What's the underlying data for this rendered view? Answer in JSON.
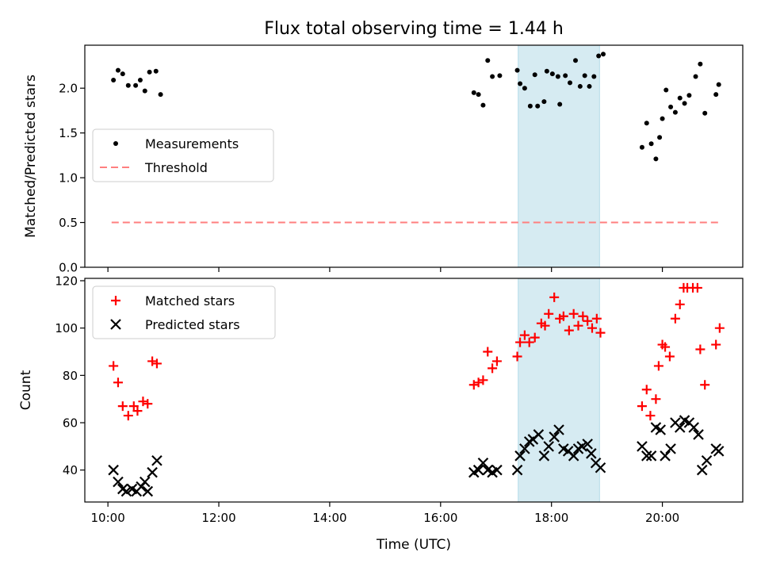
{
  "chart_data": [
    {
      "type": "scatter",
      "title": "Flux total observing time = 1.44 h",
      "ylabel": "Matched/Predicted stars",
      "xlabel": "",
      "xlim": [
        "09:35",
        "21:27"
      ],
      "ylim": [
        0,
        2.48
      ],
      "yticks": [
        0.0,
        0.5,
        1.0,
        1.5,
        2.0
      ],
      "ytick_labels": [
        "0.0",
        "0.5",
        "1.0",
        "1.5",
        "2.0"
      ],
      "xticks": [
        "10:00",
        "12:00",
        "14:00",
        "16:00",
        "18:00",
        "20:00"
      ],
      "grid": false,
      "legend": {
        "placement": "center-left",
        "entries": [
          "Measurements",
          "Threshold"
        ]
      },
      "highlight_span": {
        "start": "17:24",
        "end": "18:52",
        "color": "#add8e6"
      },
      "threshold": {
        "name": "Threshold",
        "value": 0.5,
        "x_start": "10:04",
        "x_end": "21:03",
        "color": "#ff7f7f",
        "style": "dashed"
      },
      "series": [
        {
          "name": "Measurements",
          "color": "#000000",
          "marker": "dot",
          "points": [
            [
              "10:06",
              2.09
            ],
            [
              "10:11",
              2.2
            ],
            [
              "10:16",
              2.16
            ],
            [
              "10:22",
              2.03
            ],
            [
              "10:30",
              2.03
            ],
            [
              "10:35",
              2.09
            ],
            [
              "10:40",
              1.97
            ],
            [
              "10:45",
              2.18
            ],
            [
              "10:52",
              2.19
            ],
            [
              "10:57",
              1.93
            ],
            [
              "16:36",
              1.95
            ],
            [
              "16:41",
              1.93
            ],
            [
              "16:46",
              1.81
            ],
            [
              "16:51",
              2.31
            ],
            [
              "16:56",
              2.13
            ],
            [
              "17:04",
              2.14
            ],
            [
              "17:23",
              2.2
            ],
            [
              "17:26",
              2.05
            ],
            [
              "17:31",
              2.0
            ],
            [
              "17:37",
              1.8
            ],
            [
              "17:42",
              2.15
            ],
            [
              "17:45",
              1.8
            ],
            [
              "17:52",
              1.85
            ],
            [
              "17:55",
              2.19
            ],
            [
              "18:01",
              2.16
            ],
            [
              "18:07",
              2.13
            ],
            [
              "18:09",
              1.82
            ],
            [
              "18:15",
              2.14
            ],
            [
              "18:20",
              2.06
            ],
            [
              "18:26",
              2.31
            ],
            [
              "18:31",
              2.02
            ],
            [
              "18:36",
              2.14
            ],
            [
              "18:41",
              2.02
            ],
            [
              "18:46",
              2.13
            ],
            [
              "18:51",
              2.36
            ],
            [
              "18:56",
              2.38
            ],
            [
              "19:38",
              1.34
            ],
            [
              "19:43",
              1.61
            ],
            [
              "19:48",
              1.38
            ],
            [
              "19:53",
              1.21
            ],
            [
              "19:57",
              1.45
            ],
            [
              "20:00",
              1.66
            ],
            [
              "20:04",
              1.98
            ],
            [
              "20:09",
              1.79
            ],
            [
              "20:14",
              1.73
            ],
            [
              "20:19",
              1.89
            ],
            [
              "20:24",
              1.83
            ],
            [
              "20:29",
              1.92
            ],
            [
              "20:36",
              2.13
            ],
            [
              "20:41",
              2.27
            ],
            [
              "20:46",
              1.72
            ],
            [
              "20:58",
              1.93
            ],
            [
              "21:01",
              2.04
            ]
          ]
        }
      ]
    },
    {
      "type": "scatter",
      "title": "",
      "ylabel": "Count",
      "xlabel": "Time (UTC)",
      "xlim": [
        "09:35",
        "21:27"
      ],
      "ylim": [
        26.5,
        121
      ],
      "yticks": [
        40,
        60,
        80,
        100,
        120
      ],
      "ytick_labels": [
        "40",
        "60",
        "80",
        "100",
        "120"
      ],
      "xticks": [
        "10:00",
        "12:00",
        "14:00",
        "16:00",
        "18:00",
        "20:00"
      ],
      "xtick_labels": [
        "10:00",
        "12:00",
        "14:00",
        "16:00",
        "18:00",
        "20:00"
      ],
      "grid": false,
      "legend": {
        "placement": "top-left",
        "entries": [
          "Matched stars",
          "Predicted stars"
        ]
      },
      "highlight_span": {
        "start": "17:24",
        "end": "18:52",
        "color": "#add8e6"
      },
      "series": [
        {
          "name": "Matched stars",
          "color": "#ff0000",
          "marker": "plus",
          "points": [
            [
              "10:06",
              84
            ],
            [
              "10:11",
              77
            ],
            [
              "10:16",
              67
            ],
            [
              "10:22",
              63
            ],
            [
              "10:28",
              67
            ],
            [
              "10:32",
              65
            ],
            [
              "10:38",
              69
            ],
            [
              "10:43",
              68
            ],
            [
              "10:48",
              86
            ],
            [
              "10:53",
              85
            ],
            [
              "16:36",
              76
            ],
            [
              "16:41",
              77
            ],
            [
              "16:46",
              78
            ],
            [
              "16:51",
              90
            ],
            [
              "16:56",
              83
            ],
            [
              "17:01",
              86
            ],
            [
              "17:23",
              88
            ],
            [
              "17:26",
              94
            ],
            [
              "17:31",
              97
            ],
            [
              "17:36",
              94
            ],
            [
              "17:42",
              96
            ],
            [
              "17:49",
              102
            ],
            [
              "17:53",
              101
            ],
            [
              "17:57",
              106
            ],
            [
              "18:03",
              113
            ],
            [
              "18:09",
              104
            ],
            [
              "18:13",
              105
            ],
            [
              "18:19",
              99
            ],
            [
              "18:24",
              106
            ],
            [
              "18:29",
              101
            ],
            [
              "18:34",
              105
            ],
            [
              "18:39",
              103
            ],
            [
              "18:44",
              100
            ],
            [
              "18:49",
              104
            ],
            [
              "18:53",
              98
            ],
            [
              "19:38",
              67
            ],
            [
              "19:43",
              74
            ],
            [
              "19:47",
              63
            ],
            [
              "19:53",
              70
            ],
            [
              "19:56",
              84
            ],
            [
              "20:00",
              93
            ],
            [
              "20:03",
              92
            ],
            [
              "20:08",
              88
            ],
            [
              "20:14",
              104
            ],
            [
              "20:19",
              110
            ],
            [
              "20:23",
              117
            ],
            [
              "20:27",
              117
            ],
            [
              "20:33",
              117
            ],
            [
              "20:38",
              117
            ],
            [
              "20:41",
              91
            ],
            [
              "20:46",
              76
            ],
            [
              "20:58",
              93
            ],
            [
              "21:02",
              100
            ]
          ]
        },
        {
          "name": "Predicted stars",
          "color": "#000000",
          "marker": "x",
          "points": [
            [
              "10:06",
              40
            ],
            [
              "10:11",
              35
            ],
            [
              "10:16",
              32
            ],
            [
              "10:20",
              31
            ],
            [
              "10:26",
              32
            ],
            [
              "10:31",
              31
            ],
            [
              "10:36",
              33
            ],
            [
              "10:40",
              35
            ],
            [
              "10:43",
              31
            ],
            [
              "10:48",
              39
            ],
            [
              "10:53",
              44
            ],
            [
              "16:36",
              39
            ],
            [
              "16:41",
              40
            ],
            [
              "16:46",
              43
            ],
            [
              "16:51",
              40
            ],
            [
              "16:56",
              39
            ],
            [
              "17:01",
              40
            ],
            [
              "17:23",
              40
            ],
            [
              "17:26",
              46
            ],
            [
              "17:31",
              49
            ],
            [
              "17:36",
              52
            ],
            [
              "17:40",
              53
            ],
            [
              "17:46",
              55
            ],
            [
              "17:52",
              46
            ],
            [
              "17:57",
              50
            ],
            [
              "18:03",
              54
            ],
            [
              "18:08",
              57
            ],
            [
              "18:13",
              49
            ],
            [
              "18:18",
              48
            ],
            [
              "18:24",
              46
            ],
            [
              "18:29",
              49
            ],
            [
              "18:33",
              50
            ],
            [
              "18:39",
              51
            ],
            [
              "18:43",
              47
            ],
            [
              "18:48",
              43
            ],
            [
              "18:53",
              41
            ],
            [
              "19:38",
              50
            ],
            [
              "19:43",
              46
            ],
            [
              "19:48",
              46
            ],
            [
              "19:53",
              58
            ],
            [
              "19:58",
              57
            ],
            [
              "20:03",
              46
            ],
            [
              "20:09",
              49
            ],
            [
              "20:14",
              60
            ],
            [
              "20:19",
              58
            ],
            [
              "20:24",
              61
            ],
            [
              "20:29",
              60
            ],
            [
              "20:34",
              58
            ],
            [
              "20:39",
              55
            ],
            [
              "20:43",
              40
            ],
            [
              "20:48",
              44
            ],
            [
              "20:58",
              49
            ],
            [
              "21:01",
              48
            ]
          ]
        }
      ]
    }
  ]
}
